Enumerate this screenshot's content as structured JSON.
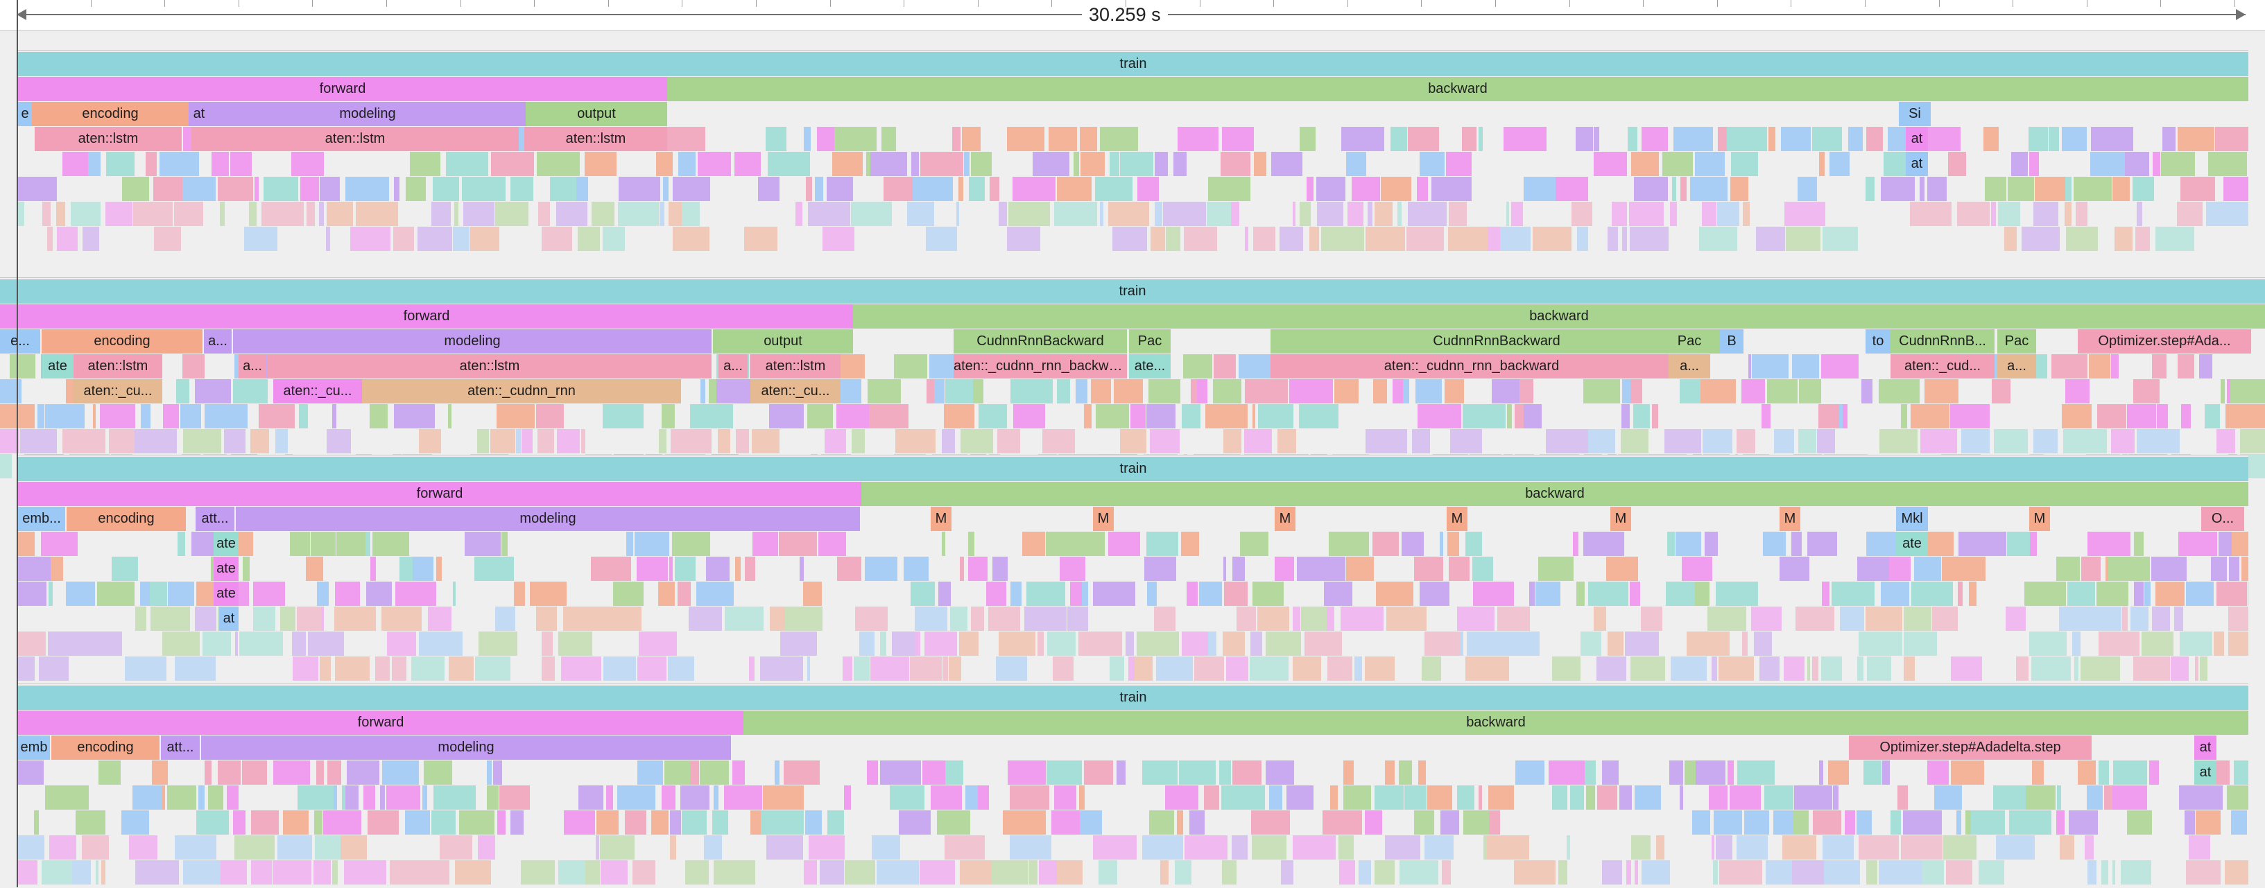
{
  "app": {
    "title": ""
  },
  "colors": {
    "train": "#8fd3db",
    "forward": "#f08ef0",
    "backward": "#a9d48f",
    "encoding": "#f3a98a",
    "modeling": "#c29cf0",
    "output": "#a9d48f",
    "lstm": "#f2a0b8",
    "cudnn": "#e5b992",
    "blue": "#9cc8f6",
    "teal": "#98dcd2",
    "bg": "#efefef"
  },
  "timeline": {
    "duration_label": "30.259 s",
    "panels": [
      {
        "slices": [
          {
            "l": "train",
            "d": 0,
            "c": "train"
          },
          {
            "l": "forward",
            "d": 1,
            "c": "forward"
          },
          {
            "l": "backward",
            "d": 1,
            "c": "backward"
          },
          {
            "l": "e",
            "d": 2,
            "c": "blue"
          },
          {
            "l": "encoding",
            "d": 2,
            "c": "encoding"
          },
          {
            "l": "at",
            "d": 2,
            "c": "modeling"
          },
          {
            "l": "modeling",
            "d": 2,
            "c": "modeling"
          },
          {
            "l": "output",
            "d": 2,
            "c": "output"
          },
          {
            "l": "aten::lstm",
            "d": 3,
            "c": "lstm"
          },
          {
            "l": "aten::lstm",
            "d": 3,
            "c": "lstm"
          },
          {
            "l": "aten::lstm",
            "d": 3,
            "c": "lstm"
          },
          {
            "l": "Si",
            "d": 2,
            "c": "blue"
          },
          {
            "l": "at",
            "d": 3,
            "c": "forward"
          },
          {
            "l": "at",
            "d": 4,
            "c": "blue"
          }
        ]
      },
      {
        "slices": [
          {
            "l": "train",
            "d": 0,
            "c": "train"
          },
          {
            "l": "forward",
            "d": 1,
            "c": "forward"
          },
          {
            "l": "backward",
            "d": 1,
            "c": "backward"
          },
          {
            "l": "e...",
            "d": 2,
            "c": "blue"
          },
          {
            "l": "encoding",
            "d": 2,
            "c": "encoding"
          },
          {
            "l": "a...",
            "d": 2,
            "c": "modeling"
          },
          {
            "l": "modeling",
            "d": 2,
            "c": "modeling"
          },
          {
            "l": "output",
            "d": 2,
            "c": "output"
          },
          {
            "l": "ate",
            "d": 3,
            "c": "teal"
          },
          {
            "l": "aten::lstm",
            "d": 3,
            "c": "lstm"
          },
          {
            "l": "a...",
            "d": 3,
            "c": "lstm"
          },
          {
            "l": "aten::lstm",
            "d": 3,
            "c": "lstm"
          },
          {
            "l": "a...",
            "d": 3,
            "c": "lstm"
          },
          {
            "l": "aten::lstm",
            "d": 3,
            "c": "lstm"
          },
          {
            "l": "aten::_cu...",
            "d": 4,
            "c": "cudnn"
          },
          {
            "l": "aten::_cu...",
            "d": 4,
            "c": "forward"
          },
          {
            "l": "aten::_cudnn_rnn",
            "d": 4,
            "c": "cudnn"
          },
          {
            "l": "aten::_cu...",
            "d": 4,
            "c": "cudnn"
          },
          {
            "l": "CudnnRnnBackward",
            "d": 2,
            "c": "backward"
          },
          {
            "l": "Pac",
            "d": 2,
            "c": "backward"
          },
          {
            "l": "CudnnRnnBackward",
            "d": 2,
            "c": "backward"
          },
          {
            "l": "Pac",
            "d": 2,
            "c": "backward"
          },
          {
            "l": "B",
            "d": 2,
            "c": "blue"
          },
          {
            "l": "to",
            "d": 2,
            "c": "blue"
          },
          {
            "l": "CudnnRnnB...",
            "d": 2,
            "c": "backward"
          },
          {
            "l": "Pac",
            "d": 2,
            "c": "backward"
          },
          {
            "l": "Optimizer.step#Ada...",
            "d": 2,
            "c": "lstm"
          },
          {
            "l": "aten::_cudnn_rnn_backward",
            "d": 3,
            "c": "lstm"
          },
          {
            "l": "ate...",
            "d": 3,
            "c": "teal"
          },
          {
            "l": "aten::_cudnn_rnn_backward",
            "d": 3,
            "c": "lstm"
          },
          {
            "l": "a...",
            "d": 3,
            "c": "cudnn"
          },
          {
            "l": "aten::_cud...",
            "d": 3,
            "c": "lstm"
          },
          {
            "l": "a...",
            "d": 3,
            "c": "cudnn"
          }
        ]
      },
      {
        "slices": [
          {
            "l": "train",
            "d": 0,
            "c": "train"
          },
          {
            "l": "forward",
            "d": 1,
            "c": "forward"
          },
          {
            "l": "backward",
            "d": 1,
            "c": "backward"
          },
          {
            "l": "emb...",
            "d": 2,
            "c": "blue"
          },
          {
            "l": "encoding",
            "d": 2,
            "c": "encoding"
          },
          {
            "l": "att...",
            "d": 2,
            "c": "modeling"
          },
          {
            "l": "modeling",
            "d": 2,
            "c": "modeling"
          },
          {
            "l": "ate",
            "d": 3,
            "c": "teal"
          },
          {
            "l": "ate",
            "d": 4,
            "c": "forward"
          },
          {
            "l": "ate",
            "d": 5,
            "c": "forward"
          },
          {
            "l": "at",
            "d": 6,
            "c": "blue"
          },
          {
            "l": "M",
            "d": 2,
            "c": "encoding"
          },
          {
            "l": "M",
            "d": 2,
            "c": "encoding"
          },
          {
            "l": "M",
            "d": 2,
            "c": "encoding"
          },
          {
            "l": "M",
            "d": 2,
            "c": "encoding"
          },
          {
            "l": "M",
            "d": 2,
            "c": "encoding"
          },
          {
            "l": "M",
            "d": 2,
            "c": "encoding"
          },
          {
            "l": "Mkl",
            "d": 2,
            "c": "blue"
          },
          {
            "l": "ate",
            "d": 3,
            "c": "teal"
          },
          {
            "l": "M",
            "d": 2,
            "c": "encoding"
          },
          {
            "l": "O...",
            "d": 2,
            "c": "lstm"
          }
        ]
      },
      {
        "slices": [
          {
            "l": "train",
            "d": 0,
            "c": "train"
          },
          {
            "l": "forward",
            "d": 1,
            "c": "forward"
          },
          {
            "l": "backward",
            "d": 1,
            "c": "backward"
          },
          {
            "l": "emb",
            "d": 2,
            "c": "blue"
          },
          {
            "l": "encoding",
            "d": 2,
            "c": "encoding"
          },
          {
            "l": "att...",
            "d": 2,
            "c": "modeling"
          },
          {
            "l": "modeling",
            "d": 2,
            "c": "modeling"
          },
          {
            "l": "Optimizer.step#Adadelta.step",
            "d": 2,
            "c": "lstm"
          },
          {
            "l": "at",
            "d": 2,
            "c": "forward"
          },
          {
            "l": "at",
            "d": 3,
            "c": "teal"
          }
        ]
      }
    ]
  }
}
